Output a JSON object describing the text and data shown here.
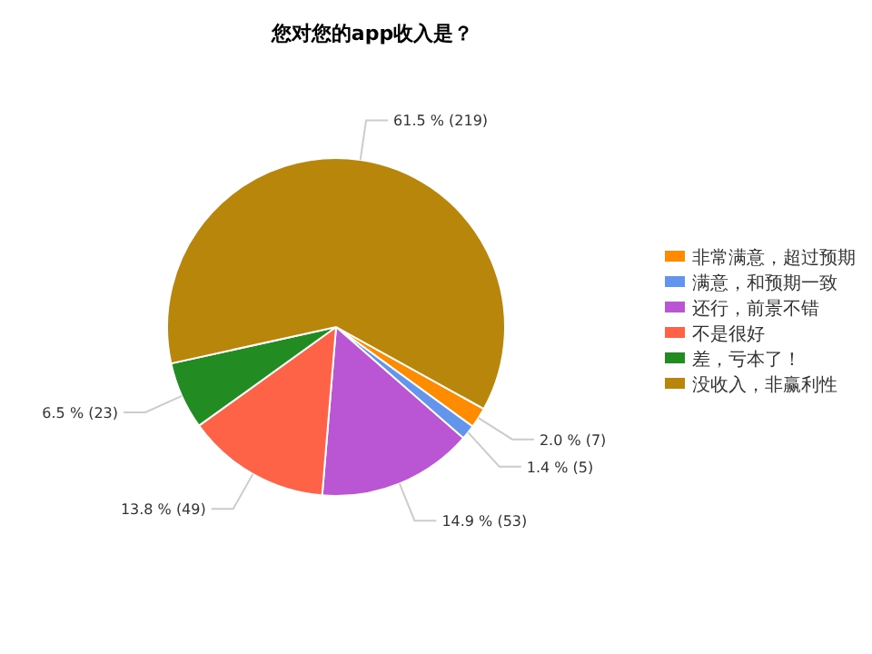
{
  "chart_data": {
    "type": "pie",
    "title": "您对您的app收入是？",
    "categories": [
      "非常满意，超过预期",
      "满意，和预期一致",
      "还行，前景不错",
      "不是很好",
      "差，亏本了！",
      "没收入，非赢利性"
    ],
    "values": [
      7,
      5,
      53,
      49,
      23,
      219
    ],
    "value_labels": [
      "2.0 % (7)",
      "1.4 % (5)",
      "14.9 % (53)",
      "13.8 % (49)",
      "6.5 % (23)",
      "61.5 % (219)"
    ],
    "colors": [
      "#ff8c00",
      "#6495ed",
      "#ba55d3",
      "#ff6347",
      "#228b22",
      "#b8860b"
    ],
    "legend": "right"
  }
}
